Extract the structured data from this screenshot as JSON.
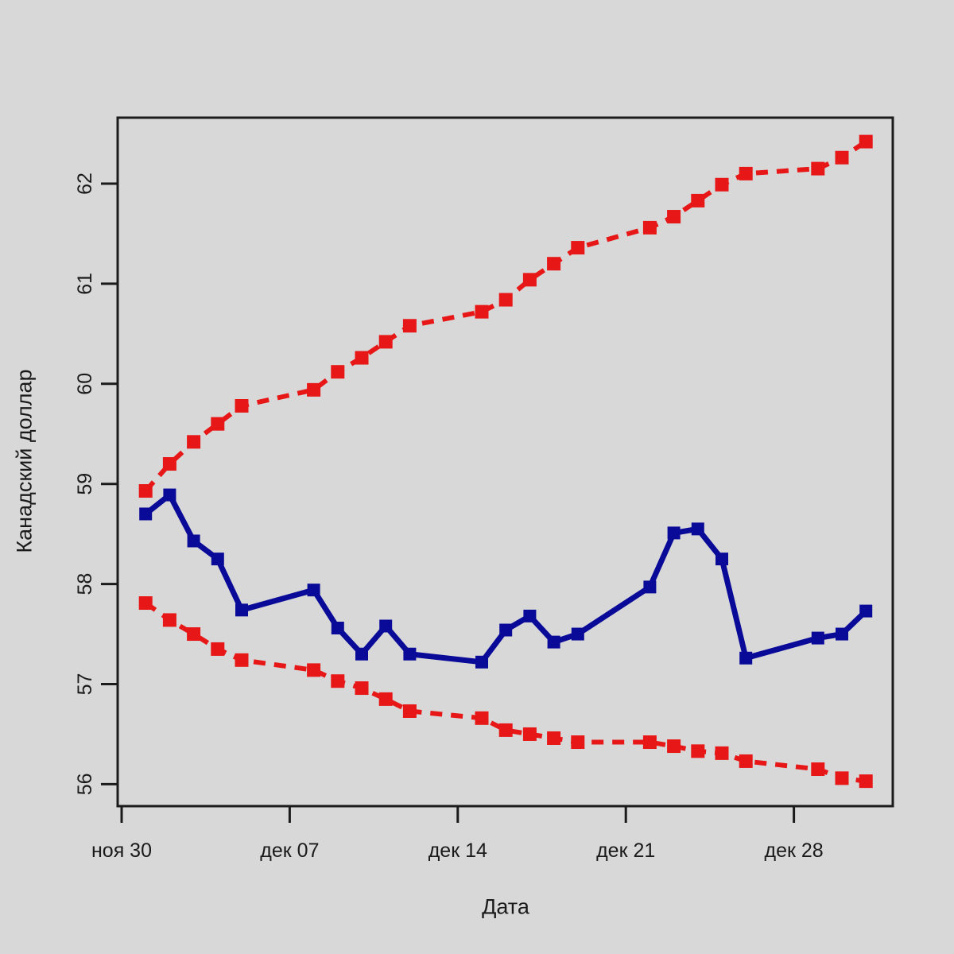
{
  "chart_data": {
    "type": "line",
    "title": "",
    "xlabel": "Дата",
    "ylabel": "Канадский доллар",
    "grid": false,
    "legend": "none",
    "x_tick_labels": [
      "ноя 30",
      "дек 07",
      "дек 14",
      "дек 21",
      "дек 28"
    ],
    "x_tick_day_offsets": [
      0,
      7,
      14,
      21,
      28
    ],
    "y_ticks": [
      56,
      57,
      58,
      59,
      60,
      61,
      62
    ],
    "ylim": [
      55.9,
      62.65
    ],
    "dates": [
      "дек 01",
      "дек 02",
      "дек 03",
      "дек 04",
      "дек 05",
      "дек 08",
      "дек 09",
      "дек 10",
      "дек 11",
      "дек 12",
      "дек 15",
      "дек 16",
      "дек 17",
      "дек 18",
      "дек 19",
      "дек 22",
      "дек 23",
      "дек 24",
      "дек 25",
      "дек 26",
      "дек 29",
      "дек 30",
      "дек 31"
    ],
    "day_offsets": [
      1,
      2,
      3,
      4,
      5,
      8,
      9,
      10,
      11,
      12,
      15,
      16,
      17,
      18,
      19,
      22,
      23,
      24,
      25,
      26,
      29,
      30,
      31
    ],
    "series": [
      {
        "name": "red-dashed-upper-band",
        "line_style": "dashed",
        "marker": "filled-square",
        "color": "#e81717",
        "values": [
          58.93,
          59.2,
          59.42,
          59.6,
          59.78,
          59.94,
          60.12,
          60.26,
          60.42,
          60.58,
          60.72,
          60.84,
          61.04,
          61.2,
          61.36,
          61.56,
          61.67,
          61.83,
          61.99,
          62.1,
          62.15,
          62.26,
          62.42
        ]
      },
      {
        "name": "red-dashed-lower-band",
        "line_style": "dashed",
        "marker": "filled-square",
        "color": "#e81717",
        "values": [
          57.81,
          57.64,
          57.5,
          57.35,
          57.24,
          57.14,
          57.03,
          56.96,
          56.85,
          56.73,
          56.66,
          56.54,
          56.5,
          56.46,
          56.42,
          56.42,
          56.38,
          56.33,
          56.31,
          56.23,
          56.15,
          56.06,
          56.03
        ]
      },
      {
        "name": "blue-solid-actual",
        "line_style": "solid",
        "marker": "filled-square",
        "color": "#0a0a99",
        "values": [
          58.7,
          58.89,
          58.43,
          58.25,
          57.74,
          57.94,
          57.56,
          57.3,
          57.58,
          57.3,
          57.22,
          57.54,
          57.68,
          57.42,
          57.5,
          57.97,
          58.51,
          58.55,
          58.25,
          57.26,
          57.46,
          57.5,
          57.73
        ]
      }
    ],
    "colors": {
      "background": "#d8d8d8",
      "frame": "#1b1b1b",
      "text": "#1a1a1a"
    }
  }
}
